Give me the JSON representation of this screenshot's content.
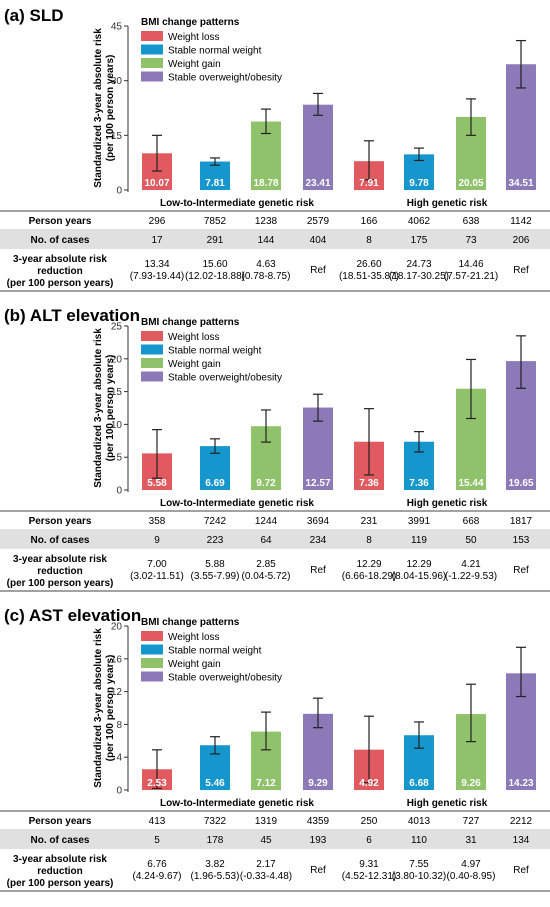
{
  "legend": {
    "title": "BMI change patterns",
    "items": [
      "Weight loss",
      "Stable normal weight",
      "Weight gain",
      "Stable overweight/obesity"
    ]
  },
  "colors": [
    "#e05a5f",
    "#1596cc",
    "#8fc26a",
    "#8c79b8"
  ],
  "y_axis_label_line1": "Standardized 3-year absolute risk",
  "y_axis_label_line2": "(per 100 person years)",
  "groups": [
    "Low-to-Intermediate genetic risk",
    "High genetic risk"
  ],
  "row_labels": {
    "person_years": "Person years",
    "cases": "No. of cases",
    "reduction_line1": "3-year absolute risk",
    "reduction_line2": "reduction",
    "reduction_line3": "(per 100 person years)"
  },
  "chart_data": [
    {
      "type": "bar",
      "title": "(a) SLD",
      "ylim": [
        0,
        45
      ],
      "yticks": [
        "0",
        "15",
        "30",
        "45"
      ],
      "categories": [
        "Weight loss",
        "Stable normal weight",
        "Weight gain",
        "Stable overweight/obesity",
        "Weight loss",
        "Stable normal weight",
        "Weight gain",
        "Stable overweight/obesity"
      ],
      "values": [
        10.07,
        7.81,
        18.78,
        23.41,
        7.91,
        9.78,
        20.05,
        34.51
      ],
      "value_labels": [
        "10.07",
        "7.81",
        "18.78",
        "23.41",
        "7.91",
        "9.78",
        "20.05",
        "34.51"
      ],
      "err_low": [
        5.2,
        6.8,
        15.5,
        20.5,
        2.8,
        8.1,
        15.0,
        28.0
      ],
      "err_high": [
        15.0,
        8.8,
        22.2,
        26.5,
        13.5,
        11.5,
        25.0,
        41.0
      ],
      "person_years": [
        "296",
        "7852",
        "1238",
        "2579",
        "166",
        "4062",
        "638",
        "1142"
      ],
      "cases": [
        "17",
        "291",
        "144",
        "404",
        "8",
        "175",
        "73",
        "206"
      ],
      "reduction": [
        "13.34",
        "15.60",
        "4.63",
        "Ref",
        "26.60",
        "24.73",
        "14.46",
        "Ref"
      ],
      "reduction_ci": [
        "(7.93-19.44)",
        "(12.02-18.88)",
        "(0.78-8.75)",
        "",
        "(18.51-35.87)",
        "(18.17-30.25)",
        "(7.57-21.21)",
        ""
      ]
    },
    {
      "type": "bar",
      "title": "(b) ALT elevation",
      "ylim": [
        0,
        25
      ],
      "yticks": [
        "0",
        "5",
        "10",
        "15",
        "20",
        "25"
      ],
      "categories": [
        "Weight loss",
        "Stable normal weight",
        "Weight gain",
        "Stable overweight/obesity",
        "Weight loss",
        "Stable normal weight",
        "Weight gain",
        "Stable overweight/obesity"
      ],
      "values": [
        5.58,
        6.69,
        9.72,
        12.57,
        7.36,
        7.36,
        15.44,
        19.65
      ],
      "value_labels": [
        "5.58",
        "6.69",
        "9.72",
        "12.57",
        "7.36",
        "7.36",
        "15.44",
        "19.65"
      ],
      "err_low": [
        1.8,
        5.6,
        7.3,
        10.5,
        2.3,
        5.8,
        10.9,
        15.5
      ],
      "err_high": [
        9.2,
        7.8,
        12.2,
        14.6,
        12.4,
        8.9,
        19.9,
        23.5
      ],
      "person_years": [
        "358",
        "7242",
        "1244",
        "3694",
        "231",
        "3991",
        "668",
        "1817"
      ],
      "cases": [
        "9",
        "223",
        "64",
        "234",
        "8",
        "119",
        "50",
        "153"
      ],
      "reduction": [
        "7.00",
        "5.88",
        "2.85",
        "Ref",
        "12.29",
        "12.29",
        "4.21",
        "Ref"
      ],
      "reduction_ci": [
        "(3.02-11.51)",
        "(3.55-7.99)",
        "(0.04-5.72)",
        "",
        "(6.66-18.29)",
        "(8.04-15.96)",
        "(-1.22-9.53)",
        ""
      ]
    },
    {
      "type": "bar",
      "title": "(c) AST elevation",
      "ylim": [
        0,
        20
      ],
      "yticks": [
        "0",
        "4",
        "8",
        "12",
        "16",
        "20"
      ],
      "categories": [
        "Weight loss",
        "Stable normal weight",
        "Weight gain",
        "Stable overweight/obesity",
        "Weight loss",
        "Stable normal weight",
        "Weight gain",
        "Stable overweight/obesity"
      ],
      "values": [
        2.53,
        5.46,
        7.12,
        9.29,
        4.92,
        6.68,
        9.26,
        14.23
      ],
      "value_labels": [
        "2.53",
        "5.46",
        "7.12",
        "9.29",
        "4.92",
        "6.68",
        "9.26",
        "14.23"
      ],
      "err_low": [
        0.2,
        4.4,
        4.9,
        7.6,
        0.9,
        5.1,
        5.9,
        11.4
      ],
      "err_high": [
        4.9,
        6.5,
        9.5,
        11.2,
        9.0,
        8.3,
        12.9,
        17.4
      ],
      "person_years": [
        "413",
        "7322",
        "1319",
        "4359",
        "250",
        "4013",
        "727",
        "2212"
      ],
      "cases": [
        "5",
        "178",
        "45",
        "193",
        "6",
        "110",
        "31",
        "134"
      ],
      "reduction": [
        "6.76",
        "3.82",
        "2.17",
        "Ref",
        "9.31",
        "7.55",
        "4.97",
        "Ref"
      ],
      "reduction_ci": [
        "(4.24-9.67)",
        "(1.96-5.53)",
        "(-0.33-4.48)",
        "",
        "(4.52-12.31)",
        "(3.80-10.32)",
        "(0.40-8.95)",
        ""
      ]
    }
  ]
}
